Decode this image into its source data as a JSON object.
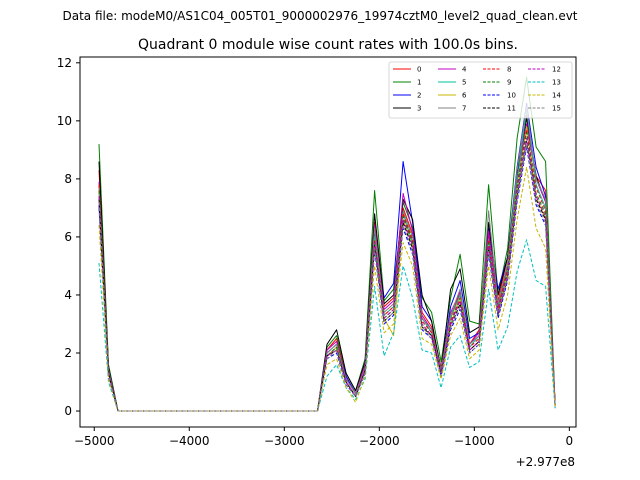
{
  "figure": {
    "suptitle": "Data file: modeM0/AS1C04_005T01_9000002976_19974cztM0_level2_quad_clean.evt",
    "title": "Quadrant 0 module wise count rates with 100.0s bins.",
    "x_offset_label": "+2.977e8"
  },
  "chart_data": {
    "type": "line",
    "title": "Quadrant 0 module wise count rates with 100.0s bins.",
    "xlabel": "",
    "ylabel": "",
    "x_offset": 297700000,
    "xlim": [
      -5150,
      70
    ],
    "ylim": [
      -0.55,
      12.2
    ],
    "xticks": [
      -5000,
      -4000,
      -3000,
      -2000,
      -1000,
      0
    ],
    "xtick_labels": [
      "−5000",
      "−4000",
      "−3000",
      "−2000",
      "−1000",
      "0"
    ],
    "yticks": [
      0,
      2,
      4,
      6,
      8,
      10,
      12
    ],
    "ytick_labels": [
      "0",
      "2",
      "4",
      "6",
      "8",
      "10",
      "12"
    ],
    "grid": false,
    "legend_position": "upper right",
    "legend_columns": 4,
    "x": [
      -4950,
      -4850,
      -4750,
      -2650,
      -2550,
      -2450,
      -2350,
      -2250,
      -2150,
      -2050,
      -1950,
      -1850,
      -1750,
      -1650,
      -1550,
      -1450,
      -1350,
      -1250,
      -1150,
      -1050,
      -950,
      -850,
      -750,
      -650,
      -550,
      -450,
      -350,
      -250,
      -150
    ],
    "series": [
      {
        "name": "0",
        "color": "#ff0000",
        "dash": false,
        "values": [
          8.3,
          1.5,
          0,
          0,
          2.1,
          2.5,
          1.2,
          0.6,
          1.6,
          6.5,
          3.6,
          3.9,
          7.0,
          6.1,
          3.4,
          2.9,
          1.5,
          3.2,
          4.1,
          2.3,
          2.8,
          6.1,
          3.8,
          5.3,
          8.2,
          10.2,
          8.1,
          7.6,
          0.2
        ]
      },
      {
        "name": "1",
        "color": "#008000",
        "dash": false,
        "values": [
          9.2,
          1.6,
          0,
          0,
          2.2,
          2.6,
          1.3,
          0.7,
          1.8,
          7.6,
          3.8,
          4.2,
          7.2,
          6.3,
          3.9,
          3.4,
          1.7,
          3.9,
          5.4,
          3.1,
          3.0,
          7.8,
          4.0,
          5.6,
          9.4,
          11.5,
          9.1,
          8.6,
          0.2
        ]
      },
      {
        "name": "2",
        "color": "#0000ff",
        "dash": false,
        "values": [
          7.1,
          1.4,
          0,
          0,
          2.0,
          2.3,
          1.2,
          0.6,
          1.5,
          6.2,
          3.9,
          4.4,
          8.6,
          6.5,
          3.6,
          3.1,
          1.4,
          3.6,
          4.5,
          2.5,
          2.7,
          6.3,
          4.2,
          5.3,
          8.4,
          10.6,
          8.4,
          7.4,
          0.1
        ]
      },
      {
        "name": "3",
        "color": "#000000",
        "dash": false,
        "values": [
          8.6,
          1.5,
          0,
          0,
          2.3,
          2.8,
          1.3,
          0.7,
          1.7,
          6.8,
          3.7,
          4.0,
          7.3,
          6.6,
          4.0,
          3.1,
          1.4,
          4.2,
          4.9,
          2.7,
          2.9,
          6.5,
          4.0,
          5.3,
          8.1,
          10.1,
          8.1,
          7.2,
          0.2
        ]
      },
      {
        "name": "4",
        "color": "#c000c0",
        "dash": false,
        "values": [
          7.9,
          1.4,
          0,
          0,
          2.1,
          2.4,
          1.1,
          0.6,
          1.6,
          6.4,
          3.5,
          3.8,
          7.5,
          6.2,
          3.3,
          2.8,
          1.4,
          3.4,
          4.1,
          2.3,
          2.7,
          6.2,
          3.6,
          5.0,
          8.0,
          9.9,
          8.0,
          7.2,
          0.2
        ]
      },
      {
        "name": "5",
        "color": "#00c0a0",
        "dash": false,
        "values": [
          7.5,
          1.3,
          0,
          0,
          2.0,
          2.3,
          1.0,
          0.5,
          1.5,
          6.0,
          3.3,
          3.6,
          6.8,
          5.8,
          3.2,
          2.7,
          1.3,
          3.2,
          4.0,
          2.2,
          2.6,
          5.9,
          3.5,
          4.9,
          7.9,
          10.4,
          7.8,
          7.0,
          0.2
        ]
      },
      {
        "name": "6",
        "color": "#c8b400",
        "dash": false,
        "values": [
          7.7,
          1.3,
          0,
          0,
          1.9,
          2.2,
          1.0,
          0.5,
          1.4,
          5.8,
          3.2,
          2.6,
          6.6,
          5.7,
          2.9,
          2.6,
          1.4,
          3.0,
          3.9,
          2.1,
          2.4,
          5.7,
          3.4,
          4.8,
          7.6,
          9.8,
          7.4,
          6.6,
          0.1
        ]
      },
      {
        "name": "7",
        "color": "#808080",
        "dash": false,
        "values": [
          7.8,
          1.4,
          0,
          0,
          2.0,
          2.3,
          1.1,
          0.6,
          1.5,
          6.3,
          3.4,
          3.7,
          6.9,
          6.0,
          3.2,
          2.8,
          1.4,
          3.3,
          4.2,
          2.3,
          2.6,
          6.9,
          3.7,
          5.1,
          8.3,
          10.5,
          8.0,
          7.3,
          0.2
        ]
      },
      {
        "name": "8",
        "color": "#ff0000",
        "dash": true,
        "values": [
          7.8,
          1.3,
          0,
          0,
          1.9,
          2.2,
          1.0,
          0.5,
          1.4,
          5.9,
          3.3,
          3.6,
          6.8,
          5.9,
          3.1,
          2.7,
          1.3,
          3.1,
          3.9,
          2.2,
          2.5,
          5.9,
          3.5,
          4.9,
          7.8,
          9.7,
          7.7,
          6.9,
          0.2
        ]
      },
      {
        "name": "9",
        "color": "#008000",
        "dash": true,
        "values": [
          7.6,
          1.3,
          0,
          0,
          1.9,
          2.2,
          1.0,
          0.5,
          1.4,
          5.8,
          3.2,
          3.5,
          6.7,
          5.8,
          3.0,
          2.6,
          1.3,
          3.0,
          3.8,
          2.1,
          2.4,
          5.8,
          3.4,
          4.8,
          7.7,
          9.6,
          7.5,
          6.8,
          0.2
        ]
      },
      {
        "name": "10",
        "color": "#0000ff",
        "dash": true,
        "values": [
          7.0,
          1.2,
          0,
          0,
          1.8,
          2.0,
          0.9,
          0.5,
          1.3,
          5.5,
          3.0,
          3.3,
          6.3,
          5.4,
          2.8,
          2.5,
          1.2,
          2.8,
          3.5,
          2.0,
          2.3,
          5.4,
          3.2,
          4.5,
          7.2,
          9.1,
          7.1,
          6.4,
          0.2
        ]
      },
      {
        "name": "11",
        "color": "#000000",
        "dash": true,
        "values": [
          7.3,
          1.3,
          0,
          0,
          1.9,
          2.1,
          1.0,
          0.5,
          1.4,
          5.7,
          3.1,
          3.4,
          6.5,
          5.6,
          2.9,
          2.6,
          1.3,
          2.9,
          3.7,
          2.1,
          2.4,
          5.6,
          3.3,
          4.6,
          7.4,
          9.3,
          7.3,
          6.6,
          0.2
        ]
      },
      {
        "name": "12",
        "color": "#c000c0",
        "dash": true,
        "values": [
          7.4,
          1.3,
          0,
          0,
          1.9,
          2.1,
          1.0,
          0.5,
          1.4,
          5.8,
          3.2,
          3.5,
          6.6,
          5.7,
          3.0,
          2.6,
          1.3,
          3.0,
          3.8,
          2.1,
          2.4,
          5.7,
          3.4,
          4.7,
          7.5,
          9.4,
          7.4,
          6.7,
          0.2
        ]
      },
      {
        "name": "13",
        "color": "#00c0c0",
        "dash": true,
        "values": [
          5.1,
          1.0,
          0,
          0,
          1.2,
          1.6,
          0.8,
          0.4,
          1.1,
          4.3,
          1.9,
          2.7,
          5.0,
          3.9,
          2.1,
          2.0,
          0.8,
          2.2,
          2.6,
          1.5,
          1.7,
          4.2,
          2.1,
          2.9,
          4.8,
          5.9,
          4.5,
          4.3,
          0.1
        ]
      },
      {
        "name": "14",
        "color": "#c8b400",
        "dash": true,
        "values": [
          6.4,
          1.1,
          0,
          0,
          1.6,
          1.8,
          0.8,
          0.3,
          1.2,
          5.0,
          2.7,
          3.0,
          5.8,
          5.0,
          2.5,
          2.3,
          1.1,
          2.6,
          3.2,
          1.8,
          2.1,
          5.0,
          2.8,
          4.0,
          6.6,
          8.4,
          6.3,
          5.6,
          0.1
        ]
      },
      {
        "name": "15",
        "color": "#808080",
        "dash": true,
        "values": [
          7.2,
          1.2,
          0,
          0,
          1.8,
          2.1,
          0.9,
          0.5,
          1.3,
          5.6,
          3.1,
          3.4,
          6.4,
          5.5,
          2.9,
          2.5,
          1.2,
          2.9,
          3.6,
          2.0,
          2.3,
          5.5,
          3.3,
          4.6,
          7.3,
          9.2,
          7.2,
          6.5,
          0.2
        ]
      }
    ]
  }
}
